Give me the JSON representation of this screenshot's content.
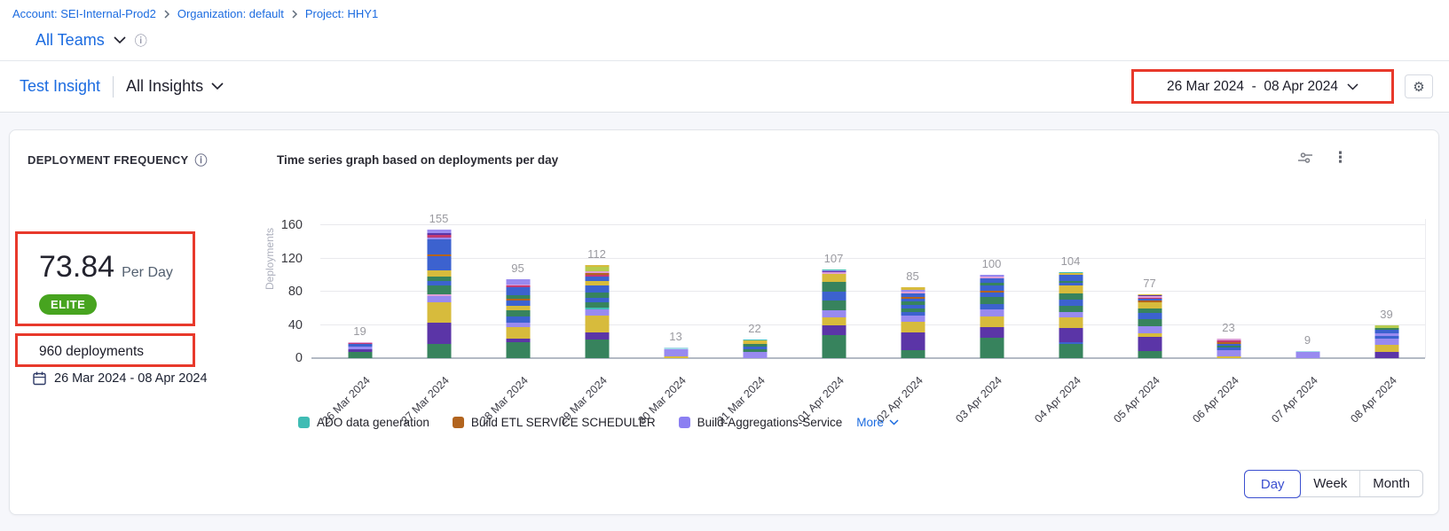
{
  "breadcrumb": {
    "items": [
      "Account: SEI-Internal-Prod2",
      "Organization: default",
      "Project: HHY1"
    ]
  },
  "team_selector": {
    "label": "All Teams"
  },
  "insight_header": {
    "title": "Test Insight",
    "dropdown": "All Insights"
  },
  "date_range": {
    "label": "26 Mar 2024  -  08 Apr 2024"
  },
  "widget": {
    "title": "DEPLOYMENT FREQUENCY",
    "metric_value": "73.84",
    "metric_unit": "Per Day",
    "badge": "ELITE",
    "badge_color": "#47a41f",
    "total_deployments": "960 deployments",
    "date_range": "26 Mar 2024 - 08 Apr 2024",
    "chart_title": "Time series graph based on deployments per day"
  },
  "chart_data": {
    "type": "bar",
    "stacked": true,
    "title": "Time series graph based on deployments per day",
    "xlabel": "",
    "ylabel": "Deployments",
    "yticks": [
      0,
      40,
      80,
      120,
      160
    ],
    "ylim": [
      0,
      168
    ],
    "grid": true,
    "legend_position": "bottom",
    "categories": [
      "26 Mar 2024",
      "27 Mar 2024",
      "28 Mar 2024",
      "29 Mar 2024",
      "30 Mar 2024",
      "31 Mar 2024",
      "01 Apr 2024",
      "02 Apr 2024",
      "03 Apr 2024",
      "04 Apr 2024",
      "05 Apr 2024",
      "06 Apr 2024",
      "07 Apr 2024",
      "08 Apr 2024"
    ],
    "totals": [
      19,
      155,
      95,
      112,
      13,
      22,
      107,
      85,
      100,
      104,
      77,
      23,
      9,
      39
    ],
    "palette": {
      "g": "#37835d",
      "p": "#5b35a7",
      "y": "#d7bb3c",
      "l": "#988af0",
      "b": "#3c62cf",
      "t": "#3fbcb4",
      "o": "#b2641e",
      "c": "#c23a72",
      "k": "#de9fd6",
      "lg": "#b6cc4f",
      "lb": "#a7dbe8"
    },
    "stacks": [
      [
        [
          "g",
          8
        ],
        [
          "p",
          3
        ],
        [
          "l",
          3
        ],
        [
          "b",
          3
        ],
        [
          "c",
          1
        ],
        [
          "k",
          1
        ]
      ],
      [
        [
          "g",
          17
        ],
        [
          "p",
          26
        ],
        [
          "y",
          24
        ],
        [
          "l",
          8
        ],
        [
          "k",
          2
        ],
        [
          "g",
          10
        ],
        [
          "b",
          6
        ],
        [
          "g",
          5
        ],
        [
          "y",
          8
        ],
        [
          "b",
          17
        ],
        [
          "o",
          2
        ],
        [
          "b",
          18
        ],
        [
          "l",
          2
        ],
        [
          "c",
          3
        ],
        [
          "p",
          2
        ],
        [
          "l",
          5
        ]
      ],
      [
        [
          "g",
          19
        ],
        [
          "p",
          5
        ],
        [
          "y",
          13
        ],
        [
          "l",
          6
        ],
        [
          "b",
          7
        ],
        [
          "g",
          8
        ],
        [
          "y",
          5
        ],
        [
          "b",
          6
        ],
        [
          "o",
          2
        ],
        [
          "g",
          5
        ],
        [
          "b",
          9
        ],
        [
          "c",
          2
        ],
        [
          "k",
          2
        ],
        [
          "l",
          6
        ]
      ],
      [
        [
          "g",
          22
        ],
        [
          "p",
          9
        ],
        [
          "y",
          20
        ],
        [
          "l",
          8
        ],
        [
          "t",
          2
        ],
        [
          "g",
          6
        ],
        [
          "b",
          6
        ],
        [
          "g",
          6
        ],
        [
          "b",
          8
        ],
        [
          "y",
          6
        ],
        [
          "b",
          5
        ],
        [
          "c",
          2
        ],
        [
          "o",
          2
        ],
        [
          "k",
          3
        ],
        [
          "lg",
          5
        ],
        [
          "y",
          2
        ]
      ],
      [
        [
          "y",
          2
        ],
        [
          "l",
          9
        ],
        [
          "lb",
          2
        ]
      ],
      [
        [
          "l",
          8
        ],
        [
          "g",
          3
        ],
        [
          "b",
          3
        ],
        [
          "g",
          3
        ],
        [
          "y",
          4
        ],
        [
          "t",
          1
        ]
      ],
      [
        [
          "g",
          28
        ],
        [
          "p",
          12
        ],
        [
          "y",
          9
        ],
        [
          "l",
          9
        ],
        [
          "g",
          11
        ],
        [
          "b",
          11
        ],
        [
          "g",
          12
        ],
        [
          "y",
          9
        ],
        [
          "k",
          2
        ],
        [
          "p",
          2
        ],
        [
          "l",
          1
        ],
        [
          "t",
          1
        ]
      ],
      [
        [
          "g",
          10
        ],
        [
          "p",
          21
        ],
        [
          "y",
          13
        ],
        [
          "l",
          7
        ],
        [
          "b",
          4
        ],
        [
          "g",
          5
        ],
        [
          "b",
          4
        ],
        [
          "g",
          4
        ],
        [
          "b",
          4
        ],
        [
          "o",
          2
        ],
        [
          "b",
          4
        ],
        [
          "k",
          2
        ],
        [
          "l",
          2
        ],
        [
          "y",
          3
        ]
      ],
      [
        [
          "g",
          25
        ],
        [
          "p",
          12
        ],
        [
          "y",
          13
        ],
        [
          "l",
          9
        ],
        [
          "b",
          6
        ],
        [
          "g",
          9
        ],
        [
          "b",
          5
        ],
        [
          "o",
          2
        ],
        [
          "b",
          6
        ],
        [
          "g",
          4
        ],
        [
          "b",
          5
        ],
        [
          "k",
          2
        ],
        [
          "l",
          2
        ]
      ],
      [
        [
          "g",
          17
        ],
        [
          "b",
          2
        ],
        [
          "p",
          17
        ],
        [
          "y",
          13
        ],
        [
          "l",
          7
        ],
        [
          "g",
          7
        ],
        [
          "b",
          7
        ],
        [
          "g",
          8
        ],
        [
          "y",
          9
        ],
        [
          "b",
          4
        ],
        [
          "g",
          2
        ],
        [
          "b",
          7
        ],
        [
          "y",
          2
        ],
        [
          "t",
          2
        ]
      ],
      [
        [
          "g",
          9
        ],
        [
          "p",
          17
        ],
        [
          "y",
          4
        ],
        [
          "l",
          8
        ],
        [
          "g",
          9
        ],
        [
          "b",
          7
        ],
        [
          "g",
          6
        ],
        [
          "y",
          7
        ],
        [
          "o",
          2
        ],
        [
          "b",
          3
        ],
        [
          "c",
          1
        ],
        [
          "k",
          2
        ],
        [
          "p",
          1
        ],
        [
          "y",
          1
        ]
      ],
      [
        [
          "y",
          2
        ],
        [
          "l",
          8
        ],
        [
          "b",
          3
        ],
        [
          "g",
          2
        ],
        [
          "b",
          2
        ],
        [
          "o",
          2
        ],
        [
          "c",
          2
        ],
        [
          "k",
          2
        ]
      ],
      [
        [
          "l",
          8
        ],
        [
          "lb",
          1
        ]
      ],
      [
        [
          "p",
          8
        ],
        [
          "y",
          8
        ],
        [
          "l",
          7
        ],
        [
          "b",
          4
        ],
        [
          "l",
          3
        ],
        [
          "b",
          4
        ],
        [
          "g",
          2
        ],
        [
          "lg",
          3
        ]
      ]
    ],
    "legend": [
      {
        "label": "ADO data generation",
        "color": "#3fbcb4"
      },
      {
        "label": "Build ETL SERVICE SCHEDULER",
        "color": "#b2641e"
      },
      {
        "label": "Build-Aggregations-Service",
        "color": "#8b7ff2"
      }
    ],
    "legend_more": "More"
  },
  "toggle": {
    "options": [
      "Day",
      "Week",
      "Month"
    ],
    "selected": "Day"
  },
  "annotations": {
    "color": "#e8392b",
    "boxed_elements": [
      "date-range",
      "metric-per-day",
      "deployment-count"
    ]
  }
}
